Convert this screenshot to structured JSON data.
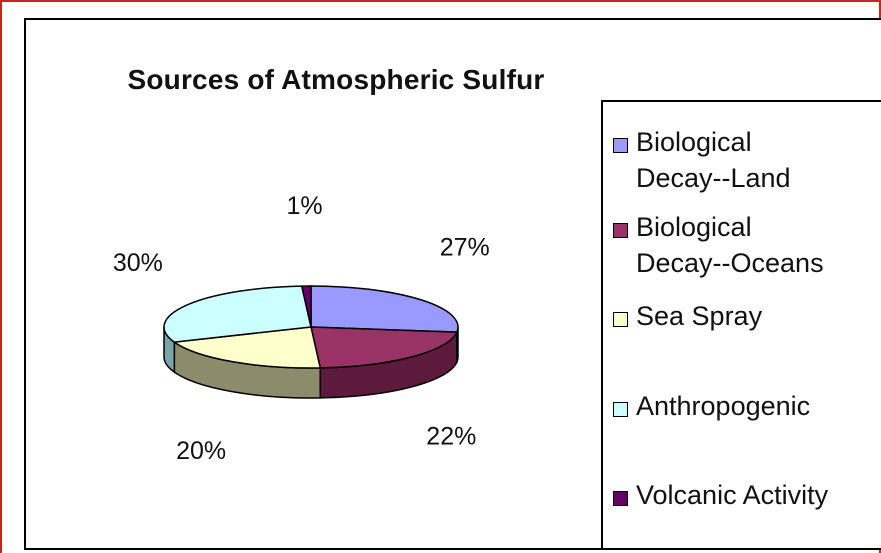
{
  "chart_data": {
    "type": "pie",
    "title": "Sources of Atmospheric Sulfur",
    "three_d": true,
    "legend_position": "right",
    "slices": [
      {
        "label": "Biological Decay--Land",
        "value": 27,
        "display": "27%",
        "color": "#9999ff",
        "side_color": "#6060b8"
      },
      {
        "label": "Biological Decay--Oceans",
        "value": 22,
        "display": "22%",
        "color": "#993366",
        "side_color": "#5e1a3c"
      },
      {
        "label": "Sea Spray",
        "value": 20,
        "display": "20%",
        "color": "#ffffcc",
        "side_color": "#8c8c6c"
      },
      {
        "label": "Anthropogenic",
        "value": 30,
        "display": "30%",
        "color": "#ccffff",
        "side_color": "#7aa5a8"
      },
      {
        "label": "Volcanic Activity",
        "value": 1,
        "display": "1%",
        "color": "#660066",
        "side_color": "#3a003a"
      }
    ]
  },
  "legend": {
    "items": [
      {
        "line1": "Biological",
        "line2": "Decay--Land"
      },
      {
        "line1": "Biological",
        "line2": "Decay--Oceans"
      },
      {
        "line1": "Sea Spray",
        "line2": ""
      },
      {
        "line1": "Anthropogenic",
        "line2": ""
      },
      {
        "line1": "Volcanic Activity",
        "line2": ""
      }
    ]
  }
}
